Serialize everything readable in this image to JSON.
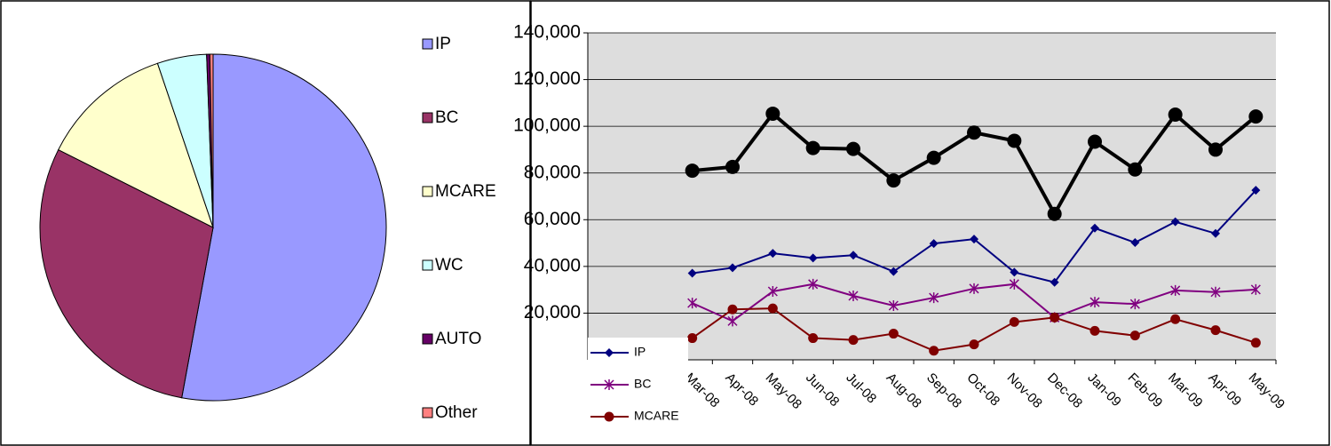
{
  "chart_data": [
    {
      "type": "pie",
      "categories": [
        "IP",
        "BC",
        "MCARE",
        "WC",
        "AUTO",
        "Other"
      ],
      "values": [
        52.9,
        29.5,
        12.4,
        4.6,
        0.3,
        0.3
      ],
      "colors": [
        "#9999ff",
        "#993366",
        "#ffffcc",
        "#ccffff",
        "#660066",
        "#ff8080"
      ]
    },
    {
      "type": "line",
      "categories": [
        "Mar-08",
        "Apr-08",
        "May-08",
        "Jun-08",
        "Jul-08",
        "Aug-08",
        "Sep-08",
        "Oct-08",
        "Nov-08",
        "Dec-08",
        "Jan-09",
        "Feb-09",
        "Mar-09",
        "Apr-09",
        "May-09"
      ],
      "series": [
        {
          "color": "#000000",
          "marker": "circle-large",
          "values": [
            81000,
            82600,
            105400,
            90700,
            90300,
            76800,
            86500,
            97300,
            93800,
            62500,
            93400,
            81500,
            105000,
            90000,
            104200
          ]
        },
        {
          "name": "IP",
          "color": "#000080",
          "marker": "diamond",
          "values": [
            37100,
            39400,
            45600,
            43600,
            44800,
            37800,
            49800,
            51700,
            37500,
            33200,
            56400,
            50200,
            59100,
            54100,
            72600
          ]
        },
        {
          "name": "BC",
          "color": "#800080",
          "marker": "asterisk",
          "values": [
            24300,
            16600,
            29300,
            32400,
            27400,
            23200,
            26600,
            30500,
            32400,
            18100,
            24700,
            23900,
            29700,
            29000,
            30100
          ]
        },
        {
          "name": "MCARE",
          "color": "#800000",
          "marker": "circle",
          "values": [
            9300,
            21600,
            22000,
            9300,
            8500,
            11200,
            3900,
            6600,
            16200,
            18100,
            12400,
            10400,
            17400,
            12700,
            7300
          ]
        }
      ],
      "ylim": [
        0,
        140000
      ],
      "yticks": [
        {
          "value": 20000,
          "label": "20,000"
        },
        {
          "value": 40000,
          "label": "40,000"
        },
        {
          "value": 60000,
          "label": "60,000"
        },
        {
          "value": 80000,
          "label": "80,000"
        },
        {
          "value": 100000,
          "label": "100,000"
        },
        {
          "value": 120000,
          "label": "120,000"
        },
        {
          "value": 140000,
          "label": "140,000"
        }
      ],
      "grid": true
    }
  ]
}
